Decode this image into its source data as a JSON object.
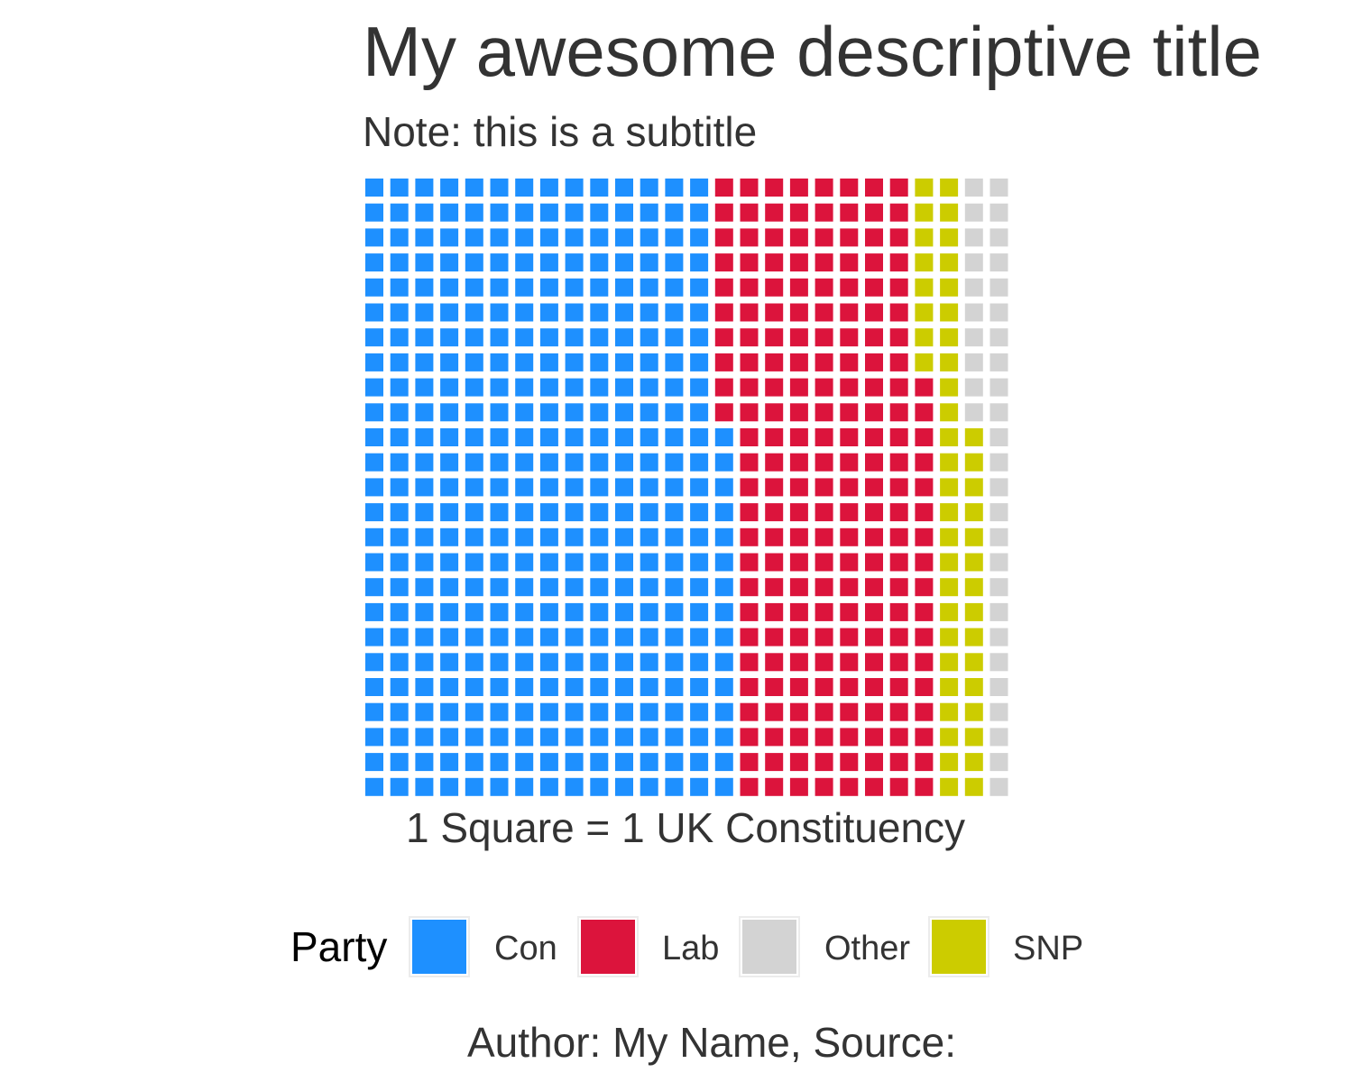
{
  "chart_data": {
    "type": "waffle",
    "title": "My awesome descriptive title",
    "subtitle": "Note: this is a subtitle",
    "xlabel": "1 Square = 1 UK Constituency",
    "caption": "Author: My Name, Source:",
    "legend_title": "Party",
    "legend_position": "bottom",
    "grid": {
      "rows": 25,
      "columns": 26
    },
    "fill_order": "column-major, bottom to top",
    "series": [
      {
        "name": "Con",
        "value": 365,
        "color": "#1E90FF"
      },
      {
        "name": "Lab",
        "value": 202,
        "color": "#DC143C"
      },
      {
        "name": "SNP",
        "value": 48,
        "color": "#CCCC00"
      },
      {
        "name": "Other",
        "value": 35,
        "color": "#D3D3D3"
      }
    ],
    "legend": [
      {
        "name": "Con",
        "color": "#1E90FF"
      },
      {
        "name": "Lab",
        "color": "#DC143C"
      },
      {
        "name": "Other",
        "color": "#D3D3D3"
      },
      {
        "name": "SNP",
        "color": "#CCCC00"
      }
    ]
  }
}
